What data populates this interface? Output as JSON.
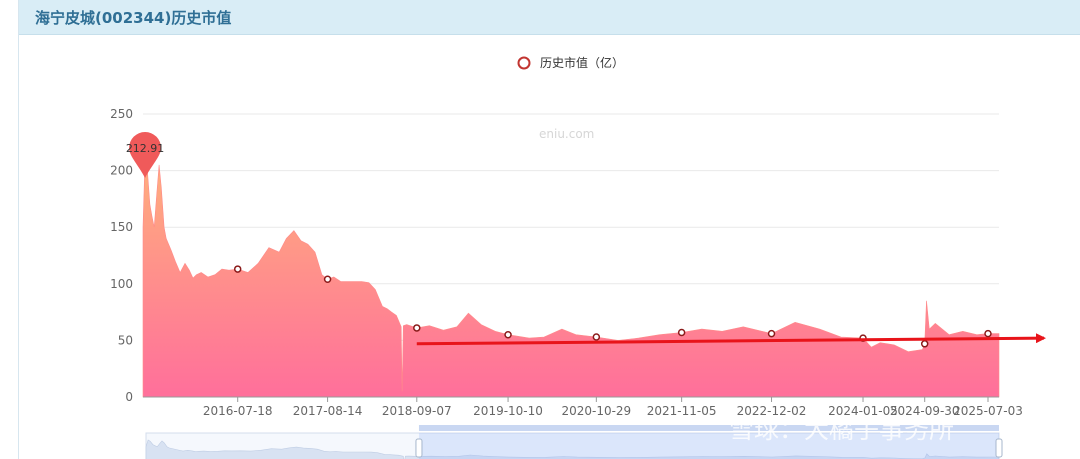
{
  "header": {
    "title": "海宁皮城(002344)历史市值"
  },
  "legend": {
    "label": "历史市值（亿）",
    "color": "#c23531"
  },
  "watermark": "eniu.com",
  "overlay_watermark": "雪球：大橘子事务所",
  "colors": {
    "area_top": "#ffb07c",
    "area_bottom": "#ff6f9b",
    "arrow": "#e8141a",
    "grid": "#e9e9e9",
    "header_bg": "#d9edf6"
  },
  "chart_data": {
    "type": "area",
    "title": "",
    "ylabel": "",
    "ylim": [
      0,
      250
    ],
    "yticks": [
      0,
      50,
      100,
      150,
      200,
      250
    ],
    "xtick_labels": [
      "2016-07-18",
      "2017-08-14",
      "2018-09-07",
      "2019-10-10",
      "2020-10-29",
      "2021-11-05",
      "2022-12-02",
      "2024-01-05",
      "2024-09-30",
      "2025-07-03"
    ],
    "series": [
      {
        "name": "历史市值（亿）",
        "x": [
          "2015-06-01",
          "2015-06-10",
          "2015-06-20",
          "2015-07-01",
          "2015-07-10",
          "2015-07-20",
          "2015-08-01",
          "2015-08-10",
          "2015-08-20",
          "2015-09-01",
          "2015-09-10",
          "2015-10-01",
          "2015-10-20",
          "2015-11-10",
          "2015-12-01",
          "2015-12-20",
          "2016-01-05",
          "2016-01-20",
          "2016-02-10",
          "2016-03-10",
          "2016-04-10",
          "2016-05-10",
          "2016-06-10",
          "2016-07-18",
          "2016-09-01",
          "2016-10-15",
          "2016-12-01",
          "2017-01-15",
          "2017-02-15",
          "2017-03-20",
          "2017-04-20",
          "2017-05-20",
          "2017-06-20",
          "2017-07-20",
          "2017-08-14",
          "2017-09-10",
          "2017-10-10",
          "2017-11-10",
          "2017-12-10",
          "2018-01-10",
          "2018-02-10",
          "2018-03-10",
          "2018-04-10",
          "2018-05-01",
          "2018-05-20",
          "2018-06-10",
          "2018-07-01",
          "2018-07-05",
          "2018-07-10",
          "2018-07-25",
          "2018-09-07",
          "2018-11-01",
          "2019-01-01",
          "2019-03-01",
          "2019-04-20",
          "2019-06-15",
          "2019-08-15",
          "2019-10-10",
          "2020-01-10",
          "2020-03-15",
          "2020-06-01",
          "2020-08-01",
          "2020-10-29",
          "2021-02-01",
          "2021-05-01",
          "2021-08-01",
          "2021-11-05",
          "2022-02-01",
          "2022-05-01",
          "2022-08-01",
          "2022-12-02",
          "2023-03-15",
          "2023-07-01",
          "2023-10-01",
          "2024-01-05",
          "2024-02-10",
          "2024-03-20",
          "2024-05-20",
          "2024-07-20",
          "2024-09-20",
          "2024-09-30",
          "2024-10-08",
          "2024-10-20",
          "2024-11-15",
          "2025-01-15",
          "2025-03-15",
          "2025-05-15",
          "2025-07-03",
          "2025-08-20"
        ],
        "values": [
          150,
          212.91,
          200,
          170,
          160,
          150,
          182,
          205,
          185,
          150,
          140,
          130,
          120,
          110,
          118,
          112,
          105,
          108,
          110,
          106,
          108,
          113,
          112,
          113,
          110,
          118,
          132,
          128,
          140,
          147,
          138,
          135,
          128,
          108,
          104,
          106,
          102,
          102,
          102,
          102,
          101,
          95,
          80,
          78,
          75,
          72,
          62,
          5,
          63,
          64,
          61,
          63,
          59,
          62,
          74,
          64,
          58,
          55,
          52,
          53,
          60,
          55,
          53,
          50,
          52,
          55,
          57,
          60,
          58,
          62,
          56,
          66,
          60,
          53,
          52,
          44,
          48,
          46,
          40,
          42,
          47,
          85,
          60,
          65,
          55,
          58,
          55,
          56,
          56
        ]
      }
    ],
    "marked_points": [
      {
        "x": "2016-07-18",
        "y": 113
      },
      {
        "x": "2017-08-14",
        "y": 104
      },
      {
        "x": "2018-09-07",
        "y": 61
      },
      {
        "x": "2019-10-10",
        "y": 55
      },
      {
        "x": "2020-10-29",
        "y": 53
      },
      {
        "x": "2021-11-05",
        "y": 57
      },
      {
        "x": "2022-12-02",
        "y": 56
      },
      {
        "x": "2024-01-05",
        "y": 52
      },
      {
        "x": "2024-09-30",
        "y": 47
      },
      {
        "x": "2025-07-03",
        "y": 56
      }
    ],
    "max_pin": {
      "x": "2015-06-10",
      "y": 212.91,
      "label": "212.91"
    },
    "trend_arrow": {
      "from": {
        "x": "2018-09-07",
        "y": 47
      },
      "to": {
        "x": "2025-08-20",
        "y": 52
      }
    },
    "grid": true,
    "legend_position": "top-center"
  },
  "datazoom": {
    "start_fraction": 0.32,
    "end_fraction": 1.0
  }
}
